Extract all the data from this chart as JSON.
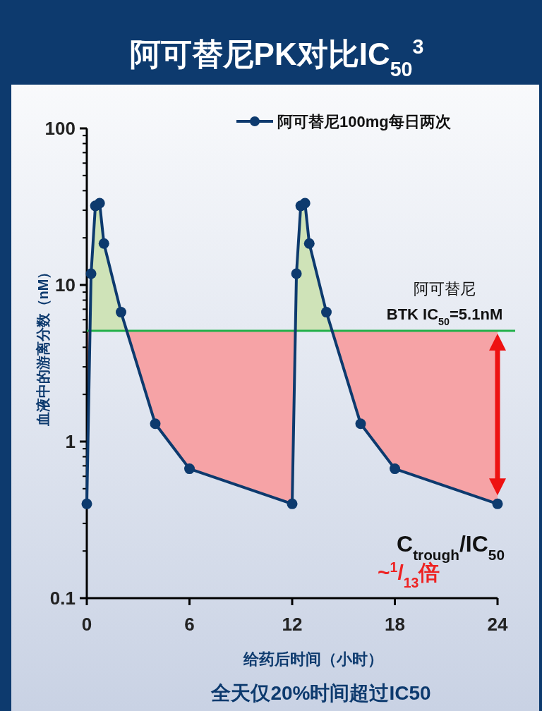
{
  "chart_data": {
    "type": "line",
    "title": "阿可替尼PK对比IC$_{50}$$^{3}$",
    "xlabel": "给药后时间（小时）",
    "ylabel": "血液中的游离分数（nM）",
    "log": "y",
    "xlim": [
      0,
      24
    ],
    "ylim": [
      0.1,
      100
    ],
    "xticks": [
      0,
      6,
      12,
      18,
      24
    ],
    "yticks": [
      0.1,
      1,
      10,
      100
    ],
    "legend": "top right",
    "marker": "circle",
    "line_style": "solid",
    "grid": false,
    "series": [
      {
        "name": "阿可替尼100mg每日两次",
        "color": "#0d3a6e",
        "x": [
          0,
          0.25,
          0.5,
          0.75,
          1,
          2,
          4,
          6,
          12,
          12.25,
          12.5,
          12.75,
          13,
          14,
          16,
          18,
          24
        ],
        "values": [
          0.4,
          11.8,
          32,
          33.3,
          18.4,
          6.7,
          1.3,
          0.67,
          0.4,
          11.8,
          32,
          33.3,
          18.4,
          6.7,
          1.3,
          0.67,
          0.4
        ]
      },
      {
        "color": "#f6a3a6",
        "x": [
          0,
          0.19,
          0.25,
          0.5,
          0.75,
          1,
          2,
          2.33,
          4,
          6,
          12,
          12.19,
          12.25,
          12.5,
          12.75,
          13,
          14,
          14.33,
          16,
          18,
          24
        ],
        "values": [
          null,
          null,
          null,
          null,
          null,
          null,
          null,
          null,
          null,
          null,
          null,
          null,
          null,
          null,
          null,
          null,
          null,
          null,
          null,
          null,
          null
        ],
        "upper": [
          5.1,
          5.1,
          11.8,
          32,
          33.3,
          18.4,
          6.7,
          5.1,
          5.1,
          5.1,
          5.1,
          5.1,
          11.8,
          32,
          33.3,
          18.4,
          6.7,
          5.1,
          5.1,
          5.1,
          5.1
        ],
        "lower": [
          0.4,
          5.1,
          5.1,
          5.1,
          5.1,
          5.1,
          5.1,
          5.1,
          1.3,
          0.67,
          0.4,
          5.1,
          5.1,
          5.1,
          5.1,
          5.1,
          5.1,
          5.1,
          1.3,
          0.67,
          0.4
        ]
      }
    ],
    "ref_lines": [
      {
        "axis": "y",
        "value": 5.1,
        "label": "阿可替尼\nBTK IC$_{50}$=5.1nM",
        "color": "#22b04a",
        "line_style": "solid"
      }
    ],
    "annotations": [
      "C$_{trough}$/IC$_{50}$",
      "~$^{1}$/$_{13}$倍",
      "全天仅20%时间超过IC50"
    ]
  }
}
